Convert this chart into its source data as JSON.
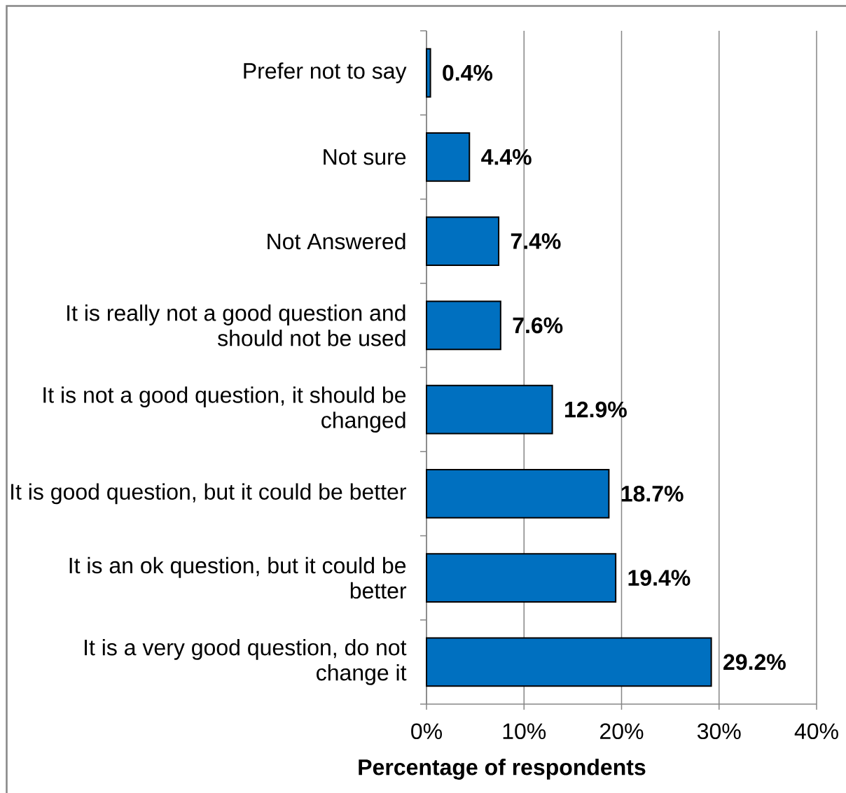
{
  "chart_data": {
    "type": "bar",
    "orientation": "horizontal",
    "categories": [
      "Prefer not to say",
      "Not sure",
      "Not Answered",
      "It is really not a good question and should not be used",
      "It is not a good question, it should be changed",
      "It is good question, but it could be better",
      "It is an ok question, but it could be better",
      "It is a very good question, do not change it"
    ],
    "values": [
      0.4,
      4.4,
      7.4,
      7.6,
      12.9,
      18.7,
      19.4,
      29.2
    ],
    "value_labels": [
      "0.4%",
      "4.4%",
      "7.4%",
      "7.6%",
      "12.9%",
      "18.7%",
      "19.4%",
      "29.2%"
    ],
    "color": "#0070c0",
    "xlabel": "Percentage of respondents",
    "xlim": [
      0,
      40
    ],
    "xticks": [
      {
        "value": 0,
        "label": "0%"
      },
      {
        "value": 10,
        "label": "10%"
      },
      {
        "value": 20,
        "label": "20%"
      },
      {
        "value": 30,
        "label": "30%"
      },
      {
        "value": 40,
        "label": "40%"
      }
    ],
    "grid": "x"
  }
}
